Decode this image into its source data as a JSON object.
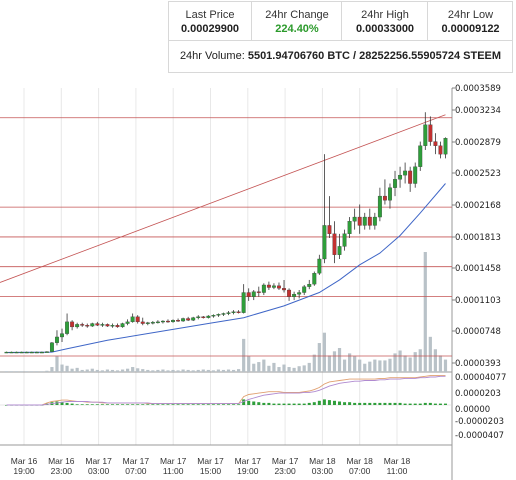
{
  "stats": {
    "last_price_label": "Last Price",
    "last_price": "0.00029900",
    "change_label": "24hr Change",
    "change": "224.40%",
    "high_label": "24hr High",
    "high": "0.00033000",
    "low_label": "24hr Low",
    "low": "0.00009122",
    "volume_label": "24hr Volume:",
    "volume_btc": "5501.94706760 BTC",
    "volume_sep": "/",
    "volume_steem": "28252256.55905724 STEEM",
    "change_color": "#2b9a2b"
  },
  "chart_data": {
    "type": "candlestick",
    "price_ticks": [
      "0.0003589",
      "0.0003234",
      "0.0002879",
      "0.0002523",
      "0.0002168",
      "0.0001813",
      "0.0001458",
      "0.0001103",
      "0.0000748",
      "0.0000393"
    ],
    "indicator_ticks": [
      "0.00004077",
      "0.0000203",
      "0.00000",
      "-0.0000203",
      "-0.0000407"
    ],
    "x_ticks": [
      [
        "Mar 16",
        "19:00"
      ],
      [
        "Mar 16",
        "23:00"
      ],
      [
        "Mar 17",
        "03:00"
      ],
      [
        "Mar 17",
        "07:00"
      ],
      [
        "Mar 17",
        "11:00"
      ],
      [
        "Mar 17",
        "15:00"
      ],
      [
        "Mar 17",
        "19:00"
      ],
      [
        "Mar 17",
        "23:00"
      ],
      [
        "Mar 18",
        "03:00"
      ],
      [
        "Mar 18",
        "07:00"
      ],
      [
        "Mar 18",
        "11:00"
      ]
    ],
    "price_ylim": [
      3.93e-05,
      0.0003589
    ],
    "horizontal_levels": [
      0.0003234,
      0.0002168,
      0.0001813,
      0.0001458,
      0.0001103,
      3.93e-05
    ],
    "trendline": [
      [
        0,
        0.000127
      ],
      [
        87,
        0.000327
      ]
    ],
    "candles": [
      [
        0,
        4.4e-05,
        4.45e-05,
        4.35e-05,
        4.4e-05
      ],
      [
        1,
        4.4e-05,
        4.45e-05,
        4.35e-05,
        4.4e-05
      ],
      [
        2,
        4.4e-05,
        4.45e-05,
        4.35e-05,
        4.4e-05
      ],
      [
        3,
        4.4e-05,
        4.45e-05,
        4.35e-05,
        4.4e-05
      ],
      [
        4,
        4.4e-05,
        4.45e-05,
        4.35e-05,
        4.4e-05
      ],
      [
        5,
        4.4e-05,
        4.45e-05,
        4.35e-05,
        4.4e-05
      ],
      [
        6,
        4.4e-05,
        4.45e-05,
        4.35e-05,
        4.4e-05
      ],
      [
        7,
        4.4e-05,
        4.45e-05,
        4.35e-05,
        4.4e-05
      ],
      [
        8,
        4.4e-05,
        4.5e-05,
        4.35e-05,
        4.45e-05
      ],
      [
        9,
        4.45e-05,
        5.6e-05,
        4.4e-05,
        5.5e-05
      ],
      [
        10,
        5.5e-05,
        7e-05,
        5.2e-05,
        6.2e-05
      ],
      [
        11,
        6.2e-05,
        7.2e-05,
        5.6e-05,
        6.6e-05
      ],
      [
        12,
        6.6e-05,
        9e-05,
        6.4e-05,
        8e-05
      ],
      [
        13,
        8e-05,
        8.2e-05,
        7e-05,
        7.4e-05
      ],
      [
        14,
        7.4e-05,
        7.9e-05,
        7.2e-05,
        7.7e-05
      ],
      [
        15,
        7.7e-05,
        7.9e-05,
        7.4e-05,
        7.6e-05
      ],
      [
        16,
        7.6e-05,
        7.8e-05,
        7.3e-05,
        7.5e-05
      ],
      [
        17,
        7.5e-05,
        7.9e-05,
        7.4e-05,
        7.8e-05
      ],
      [
        18,
        7.8e-05,
        8e-05,
        7.5e-05,
        7.6e-05
      ],
      [
        19,
        7.6e-05,
        7.9e-05,
        7.4e-05,
        7.7e-05
      ],
      [
        20,
        7.7e-05,
        7.8e-05,
        7.4e-05,
        7.5e-05
      ],
      [
        21,
        7.5e-05,
        7.8e-05,
        7.3e-05,
        7.6e-05
      ],
      [
        22,
        7.6e-05,
        7.8e-05,
        7.3e-05,
        7.4e-05
      ],
      [
        23,
        7.4e-05,
        7.9e-05,
        7.3e-05,
        7.8e-05
      ],
      [
        24,
        7.8e-05,
        8.3e-05,
        7.6e-05,
        8e-05
      ],
      [
        25,
        8e-05,
        9e-05,
        7.9e-05,
        8.6e-05
      ],
      [
        26,
        8.6e-05,
        8.8e-05,
        7.8e-05,
        8e-05
      ],
      [
        27,
        8e-05,
        8.5e-05,
        7.6e-05,
        7.8e-05
      ],
      [
        28,
        7.8e-05,
        8e-05,
        7.6e-05,
        7.9e-05
      ],
      [
        29,
        7.9e-05,
        8.1e-05,
        7.7e-05,
        7.95e-05
      ],
      [
        30,
        7.95e-05,
        8.2e-05,
        7.8e-05,
        8e-05
      ],
      [
        31,
        8e-05,
        8.2e-05,
        7.8e-05,
        8.1e-05
      ],
      [
        32,
        8.1e-05,
        8.3e-05,
        7.9e-05,
        8e-05
      ],
      [
        33,
        8e-05,
        8.3e-05,
        7.9e-05,
        8.2e-05
      ],
      [
        34,
        8.2e-05,
        8.4e-05,
        8e-05,
        8.1e-05
      ],
      [
        35,
        8.1e-05,
        8.5e-05,
        8e-05,
        8.4e-05
      ],
      [
        36,
        8.4e-05,
        8.6e-05,
        8.1e-05,
        8.2e-05
      ],
      [
        37,
        8.2e-05,
        8.6e-05,
        8.1e-05,
        8.5e-05
      ],
      [
        38,
        8.5e-05,
        8.8e-05,
        8.3e-05,
        8.6e-05
      ],
      [
        39,
        8.6e-05,
        8.7e-05,
        8.4e-05,
        8.5e-05
      ],
      [
        40,
        8.5e-05,
        8.8e-05,
        8.4e-05,
        8.7e-05
      ],
      [
        41,
        8.7e-05,
        8.9e-05,
        8.5e-05,
        8.8e-05
      ],
      [
        42,
        8.8e-05,
        9e-05,
        8.6e-05,
        8.9e-05
      ],
      [
        43,
        8.9e-05,
        9.1e-05,
        8.7e-05,
        9e-05
      ],
      [
        44,
        9e-05,
        9.3e-05,
        8.8e-05,
        9.1e-05
      ],
      [
        45,
        9.1e-05,
        9.4e-05,
        8.9e-05,
        9.2e-05
      ],
      [
        46,
        9.2e-05,
        9.4e-05,
        9e-05,
        9.1e-05
      ],
      [
        47,
        9.1e-05,
        0.000125,
        9e-05,
        0.000115
      ],
      [
        48,
        0.000115,
        0.00012,
        0.000105,
        0.00011
      ],
      [
        49,
        0.00011,
        0.000118,
        0.000106,
        0.000116
      ],
      [
        50,
        0.000116,
        0.000122,
        0.00011,
        0.000115
      ],
      [
        51,
        0.000115,
        0.000126,
        0.000112,
        0.000124
      ],
      [
        52,
        0.000124,
        0.000128,
        0.000118,
        0.000121
      ],
      [
        53,
        0.000121,
        0.000126,
        0.000119,
        0.000123
      ],
      [
        54,
        0.000123,
        0.000127,
        0.000118,
        0.00012
      ],
      [
        55,
        0.00012,
        0.00013,
        0.000115,
        0.000118
      ],
      [
        56,
        0.000118,
        0.00012,
        0.000105,
        0.00011
      ],
      [
        57,
        0.00011,
        0.000116,
        0.000106,
        0.000113
      ],
      [
        58,
        0.000113,
        0.000118,
        0.000108,
        0.000115
      ],
      [
        59,
        0.000115,
        0.000124,
        0.000112,
        0.000122
      ],
      [
        60,
        0.000122,
        0.00013,
        0.000119,
        0.000125
      ],
      [
        61,
        0.000125,
        0.00014,
        0.000123,
        0.000138
      ],
      [
        62,
        0.000138,
        0.00016,
        0.000136,
        0.000155
      ],
      [
        63,
        0.000155,
        0.00028,
        0.00015,
        0.000195
      ],
      [
        64,
        0.000195,
        0.00023,
        0.00018,
        0.000185
      ],
      [
        65,
        0.000185,
        0.0002,
        0.00015,
        0.00016
      ],
      [
        66,
        0.00016,
        0.000185,
        0.000155,
        0.00017
      ],
      [
        67,
        0.00017,
        0.00019,
        0.000165,
        0.000185
      ],
      [
        68,
        0.000185,
        0.000205,
        0.00018,
        0.0002
      ],
      [
        69,
        0.0002,
        0.000215,
        0.00019,
        0.000205
      ],
      [
        70,
        0.000205,
        0.00022,
        0.000185,
        0.000195
      ],
      [
        71,
        0.000195,
        0.00021,
        0.00019,
        0.000205
      ],
      [
        72,
        0.000205,
        0.000215,
        0.00019,
        0.000195
      ],
      [
        73,
        0.000195,
        0.00021,
        0.00019,
        0.000205
      ],
      [
        74,
        0.000205,
        0.00024,
        0.0002,
        0.00023
      ],
      [
        75,
        0.00023,
        0.00025,
        0.00022,
        0.000225
      ],
      [
        76,
        0.000225,
        0.000245,
        0.000215,
        0.00024
      ],
      [
        77,
        0.00024,
        0.00026,
        0.00023,
        0.00025
      ],
      [
        78,
        0.00025,
        0.000265,
        0.00024,
        0.000255
      ],
      [
        79,
        0.000255,
        0.00027,
        0.000245,
        0.00026
      ],
      [
        80,
        0.00026,
        0.000265,
        0.000235,
        0.000245
      ],
      [
        81,
        0.000245,
        0.00027,
        0.00024,
        0.000265
      ],
      [
        82,
        0.000265,
        0.000295,
        0.00026,
        0.00029
      ],
      [
        83,
        0.00029,
        0.00033,
        0.000285,
        0.000315
      ],
      [
        84,
        0.000315,
        0.000325,
        0.00029,
        0.000295
      ],
      [
        85,
        0.000295,
        0.000305,
        0.00028,
        0.00029
      ],
      [
        86,
        0.00029,
        0.000295,
        0.000275,
        0.00028
      ],
      [
        87,
        0.00028,
        0.0003,
        0.000275,
        0.000299
      ]
    ],
    "moving_average": [
      [
        0,
        4.35e-05
      ],
      [
        9,
        4.4e-05
      ],
      [
        12,
        4.8e-05
      ],
      [
        20,
        5.8e-05
      ],
      [
        30,
        6.8e-05
      ],
      [
        40,
        7.8e-05
      ],
      [
        47,
        8.5e-05
      ],
      [
        55,
        9.9e-05
      ],
      [
        62,
        0.000115
      ],
      [
        66,
        0.00013
      ],
      [
        70,
        0.000148
      ],
      [
        74,
        0.000162
      ],
      [
        78,
        0.000183
      ],
      [
        82,
        0.00021
      ],
      [
        87,
        0.000245
      ]
    ],
    "volume": [
      2,
      2,
      2,
      2,
      2,
      2,
      2,
      2,
      3,
      12,
      38,
      18,
      15,
      8,
      10,
      5,
      6,
      8,
      5,
      4,
      6,
      5,
      4,
      6,
      8,
      12,
      9,
      7,
      5,
      4,
      5,
      6,
      4,
      5,
      4,
      6,
      5,
      4,
      5,
      6,
      5,
      4,
      6,
      5,
      6,
      5,
      7,
      80,
      38,
      20,
      24,
      30,
      15,
      22,
      12,
      18,
      12,
      10,
      14,
      16,
      22,
      42,
      70,
      95,
      40,
      50,
      58,
      30,
      45,
      38,
      30,
      20,
      25,
      30,
      28,
      28,
      32,
      45,
      52,
      40,
      35,
      48,
      55,
      290,
      85,
      55,
      40,
      30
    ],
    "volume_max": 290,
    "indicator_macd": [
      0,
      0,
      0,
      0,
      0,
      0,
      0,
      0,
      0.3,
      0.5,
      0.6,
      0.7,
      0.7,
      0.6,
      0.5,
      0.5,
      0.4,
      0.4,
      0.4,
      0.3,
      0.3,
      0.3,
      0.3,
      0.3,
      0.3,
      0.3,
      0.3,
      0.3,
      0.2,
      0.2,
      0.2,
      0.2,
      0.2,
      0.2,
      0.2,
      0.2,
      0.2,
      0.2,
      0.2,
      0.2,
      0.2,
      0.2,
      0.2,
      0.2,
      0.2,
      0.2,
      0.2,
      1.2,
      1.5,
      1.6,
      1.7,
      1.8,
      1.9,
      1.9,
      1.9,
      1.8,
      1.8,
      1.8,
      1.8,
      1.9,
      2.0,
      2.2,
      2.5,
      3.0,
      3.3,
      3.4,
      3.5,
      3.6,
      3.7,
      3.7,
      3.7,
      3.7,
      3.7,
      3.7,
      3.8,
      3.8,
      3.9,
      3.9,
      3.9,
      3.9,
      3.9,
      3.9,
      4.0,
      4.1,
      4.2,
      4.2,
      4.2,
      4.2
    ],
    "indicator_signal": [
      0,
      0,
      0,
      0,
      0,
      0,
      0,
      0,
      0.1,
      0.2,
      0.3,
      0.4,
      0.5,
      0.5,
      0.5,
      0.5,
      0.5,
      0.4,
      0.4,
      0.4,
      0.3,
      0.3,
      0.3,
      0.3,
      0.3,
      0.3,
      0.3,
      0.3,
      0.3,
      0.2,
      0.2,
      0.2,
      0.2,
      0.2,
      0.2,
      0.2,
      0.2,
      0.2,
      0.2,
      0.2,
      0.2,
      0.2,
      0.2,
      0.2,
      0.2,
      0.2,
      0.2,
      0.5,
      0.8,
      1.0,
      1.2,
      1.4,
      1.5,
      1.6,
      1.7,
      1.7,
      1.7,
      1.7,
      1.7,
      1.8,
      1.8,
      1.9,
      2.1,
      2.4,
      2.7,
      2.9,
      3.1,
      3.2,
      3.3,
      3.4,
      3.4,
      3.5,
      3.5,
      3.5,
      3.6,
      3.6,
      3.7,
      3.7,
      3.7,
      3.8,
      3.8,
      3.8,
      3.9,
      3.9,
      4.0,
      4.0,
      4.1,
      4.1
    ],
    "indicator_hist": [
      0,
      0,
      0,
      0,
      0,
      0,
      0,
      0,
      0.2,
      0.4,
      0.5,
      0.4,
      0.3,
      0.2,
      0.1,
      0.1,
      0.1,
      0.1,
      0.1,
      0.1,
      0.1,
      0.1,
      0.1,
      0.1,
      0.1,
      0.1,
      0.1,
      0.1,
      0.1,
      0.1,
      0.1,
      0.1,
      0.1,
      0.1,
      0.1,
      0.1,
      0.1,
      0.1,
      0.1,
      0.1,
      0.1,
      0.1,
      0.1,
      0.1,
      0.1,
      0.1,
      0.1,
      0.8,
      0.6,
      0.5,
      0.4,
      0.3,
      0.3,
      0.2,
      0.2,
      0.2,
      0.2,
      0.2,
      0.2,
      0.2,
      0.3,
      0.4,
      0.6,
      0.8,
      0.7,
      0.6,
      0.5,
      0.4,
      0.4,
      0.3,
      0.3,
      0.3,
      0.3,
      0.3,
      0.3,
      0.3,
      0.3,
      0.3,
      0.3,
      0.2,
      0.2,
      0.2,
      0.2,
      0.3,
      0.3,
      0.2,
      0.2,
      0.2
    ],
    "colors": {
      "up": "#2e9e3a",
      "down": "#c23030",
      "wick": "#333333",
      "level": "#c45454",
      "trend": "#c45454",
      "ma": "#3f66c7",
      "volume": "#b9c2c8",
      "macd": "#e0a070",
      "signal": "#b08ad0",
      "hist": "#2e9e3a",
      "grid": "#e8e8e8"
    }
  }
}
